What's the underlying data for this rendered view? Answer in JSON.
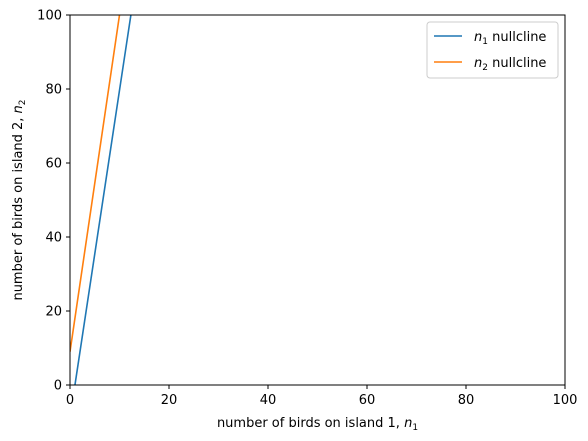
{
  "chart_data": {
    "type": "line",
    "xlabel": {
      "main": "number of birds on island 1, ",
      "var": "n",
      "sub": "1"
    },
    "ylabel": {
      "main": "number of birds on island 2, ",
      "var": "n",
      "sub": "2"
    },
    "xlim": [
      0,
      100
    ],
    "ylim": [
      0,
      100
    ],
    "xticks": [
      0,
      20,
      40,
      60,
      80,
      100
    ],
    "yticks": [
      0,
      20,
      40,
      60,
      80,
      100
    ],
    "grid": false,
    "legend_position": "top-right",
    "series": [
      {
        "name": {
          "var": "n",
          "sub": "1",
          "text": " nullcline"
        },
        "color": "#1f77b4",
        "x": [
          1,
          12.3
        ],
        "y": [
          0,
          100
        ]
      },
      {
        "name": {
          "var": "n",
          "sub": "2",
          "text": " nullcline"
        },
        "color": "#ff7f0e",
        "x": [
          0,
          10
        ],
        "y": [
          9,
          100
        ]
      }
    ]
  }
}
